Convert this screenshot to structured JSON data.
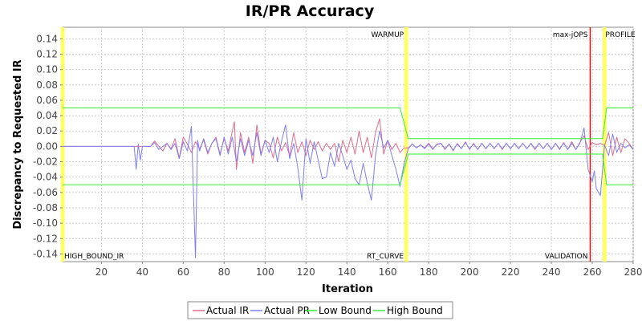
{
  "chart_data": {
    "type": "line",
    "title": "IR/PR Accuracy",
    "xlabel": "Iteration",
    "ylabel": "Discrepancy to Requested IR",
    "xlim": [
      1,
      280
    ],
    "ylim": [
      -0.15,
      0.155
    ],
    "x_ticks": [
      20,
      40,
      60,
      80,
      100,
      120,
      140,
      160,
      180,
      200,
      220,
      240,
      260,
      280
    ],
    "y_ticks": [
      -0.14,
      -0.12,
      -0.1,
      -0.08,
      -0.06,
      -0.04,
      -0.02,
      0.0,
      0.02,
      0.04,
      0.06,
      0.08,
      0.1,
      0.12,
      0.14
    ],
    "y_tick_labels": [
      "-0.14",
      "-0.12",
      "-0.10",
      "-0.08",
      "-0.06",
      "-0.04",
      "-0.02",
      "0.00",
      "0.02",
      "0.04",
      "0.06",
      "0.08",
      "0.10",
      "0.12",
      "0.14"
    ],
    "grid": true,
    "legend_position": "bottom",
    "series": [
      {
        "name": "Actual IR",
        "color": "#e06c8c",
        "points": [
          [
            1,
            0
          ],
          [
            36,
            0
          ],
          [
            38,
            0
          ],
          [
            40,
            0
          ],
          [
            42,
            0
          ],
          [
            44,
            0
          ],
          [
            46,
            0.007
          ],
          [
            48,
            0
          ],
          [
            50,
            -0.006
          ],
          [
            52,
            0.004
          ],
          [
            54,
            -0.003
          ],
          [
            56,
            0.01
          ],
          [
            58,
            -0.015
          ],
          [
            60,
            0.012
          ],
          [
            62,
            0.003
          ],
          [
            64,
            -0.008
          ],
          [
            66,
            0.006
          ],
          [
            68,
            -0.003
          ],
          [
            70,
            0.008
          ],
          [
            72,
            -0.01
          ],
          [
            74,
            0.004
          ],
          [
            76,
            0.012
          ],
          [
            78,
            -0.01
          ],
          [
            80,
            0.01
          ],
          [
            82,
            -0.006
          ],
          [
            84,
            0.02
          ],
          [
            85,
            0.032
          ],
          [
            86,
            -0.03
          ],
          [
            88,
            0.018
          ],
          [
            90,
            -0.008
          ],
          [
            92,
            0.012
          ],
          [
            94,
            -0.022
          ],
          [
            96,
            0.028
          ],
          [
            98,
            -0.01
          ],
          [
            100,
            0.008
          ],
          [
            102,
            0.004
          ],
          [
            104,
            -0.015
          ],
          [
            106,
            0.012
          ],
          [
            108,
            -0.006
          ],
          [
            110,
            0.005
          ],
          [
            112,
            -0.012
          ],
          [
            114,
            0.018
          ],
          [
            116,
            -0.008
          ],
          [
            118,
            0.006
          ],
          [
            120,
            -0.012
          ],
          [
            122,
            0.008
          ],
          [
            124,
            -0.004
          ],
          [
            126,
            0.006
          ],
          [
            128,
            -0.006
          ],
          [
            130,
            0.004
          ],
          [
            132,
            -0.004
          ],
          [
            134,
            0.004
          ],
          [
            136,
            -0.02
          ],
          [
            138,
            0.008
          ],
          [
            140,
            -0.008
          ],
          [
            142,
            0.012
          ],
          [
            144,
            -0.01
          ],
          [
            146,
            0.02
          ],
          [
            148,
            -0.008
          ],
          [
            150,
            0.012
          ],
          [
            152,
            -0.015
          ],
          [
            154,
            0.018
          ],
          [
            156,
            0.036
          ],
          [
            158,
            -0.01
          ],
          [
            160,
            0.008
          ],
          [
            162,
            -0.004
          ],
          [
            164,
            0.004
          ],
          [
            166,
            -0.008
          ],
          [
            168,
            -0.002
          ],
          [
            170,
            -0.002
          ],
          [
            172,
            0.003
          ],
          [
            174,
            -0.002
          ],
          [
            176,
            0.002
          ],
          [
            178,
            -0.002
          ],
          [
            180,
            0.004
          ],
          [
            182,
            -0.003
          ],
          [
            184,
            0.002
          ],
          [
            186,
            0.004
          ],
          [
            188,
            -0.004
          ],
          [
            190,
            0.003
          ],
          [
            192,
            -0.006
          ],
          [
            194,
            0.004
          ],
          [
            196,
            -0.003
          ],
          [
            198,
            0.006
          ],
          [
            200,
            -0.004
          ],
          [
            202,
            0.004
          ],
          [
            204,
            -0.004
          ],
          [
            206,
            0.004
          ],
          [
            208,
            -0.003
          ],
          [
            210,
            0.004
          ],
          [
            212,
            -0.003
          ],
          [
            214,
            0.004
          ],
          [
            216,
            -0.004
          ],
          [
            218,
            0.004
          ],
          [
            220,
            -0.003
          ],
          [
            222,
            0.004
          ],
          [
            224,
            -0.003
          ],
          [
            226,
            0.004
          ],
          [
            228,
            -0.003
          ],
          [
            230,
            0.004
          ],
          [
            232,
            -0.004
          ],
          [
            234,
            0.004
          ],
          [
            236,
            -0.003
          ],
          [
            238,
            0.004
          ],
          [
            240,
            -0.004
          ],
          [
            242,
            0.004
          ],
          [
            244,
            -0.004
          ],
          [
            246,
            0.005
          ],
          [
            248,
            -0.004
          ],
          [
            250,
            0.006
          ],
          [
            252,
            -0.004
          ],
          [
            254,
            0.005
          ],
          [
            256,
            0.014
          ],
          [
            258,
            -0.004
          ],
          [
            260,
            0.005
          ],
          [
            262,
            0.002
          ],
          [
            264,
            0.004
          ],
          [
            266,
            0.001
          ],
          [
            268,
            0.018
          ],
          [
            270,
            -0.012
          ],
          [
            272,
            0.012
          ],
          [
            274,
            -0.008
          ],
          [
            276,
            0.01
          ],
          [
            278,
            0.004
          ],
          [
            280,
            -0.004
          ]
        ]
      },
      {
        "name": "Actual PR",
        "color": "#7f7fef",
        "points": [
          [
            1,
            0
          ],
          [
            36,
            0
          ],
          [
            37,
            -0.03
          ],
          [
            38,
            0.003
          ],
          [
            39,
            -0.018
          ],
          [
            40,
            0
          ],
          [
            44,
            0
          ],
          [
            46,
            0.005
          ],
          [
            48,
            -0.004
          ],
          [
            50,
            0
          ],
          [
            52,
            0.004
          ],
          [
            54,
            -0.004
          ],
          [
            56,
            0.004
          ],
          [
            58,
            -0.016
          ],
          [
            60,
            0.006
          ],
          [
            62,
            -0.006
          ],
          [
            64,
            0.026
          ],
          [
            66,
            -0.145
          ],
          [
            67,
            0.008
          ],
          [
            68,
            -0.006
          ],
          [
            70,
            0.01
          ],
          [
            72,
            -0.008
          ],
          [
            74,
            0.004
          ],
          [
            76,
            0.01
          ],
          [
            78,
            -0.012
          ],
          [
            80,
            0.012
          ],
          [
            82,
            -0.01
          ],
          [
            84,
            0.012
          ],
          [
            86,
            -0.02
          ],
          [
            88,
            0.01
          ],
          [
            90,
            -0.012
          ],
          [
            92,
            0.008
          ],
          [
            94,
            -0.012
          ],
          [
            96,
            0.018
          ],
          [
            98,
            -0.012
          ],
          [
            100,
            0.008
          ],
          [
            102,
            -0.008
          ],
          [
            104,
            0.012
          ],
          [
            106,
            -0.02
          ],
          [
            108,
            0.006
          ],
          [
            110,
            0.028
          ],
          [
            112,
            -0.016
          ],
          [
            114,
            0.004
          ],
          [
            116,
            -0.028
          ],
          [
            118,
            -0.07
          ],
          [
            120,
            0.01
          ],
          [
            122,
            -0.022
          ],
          [
            124,
            0.006
          ],
          [
            126,
            -0.018
          ],
          [
            128,
            -0.042
          ],
          [
            130,
            -0.04
          ],
          [
            132,
            -0.008
          ],
          [
            134,
            -0.026
          ],
          [
            136,
            0.004
          ],
          [
            138,
            -0.012
          ],
          [
            140,
            -0.03
          ],
          [
            142,
            -0.018
          ],
          [
            144,
            -0.042
          ],
          [
            146,
            -0.05
          ],
          [
            148,
            -0.022
          ],
          [
            150,
            -0.048
          ],
          [
            152,
            -0.07
          ],
          [
            154,
            -0.012
          ],
          [
            156,
            0.02
          ],
          [
            158,
            -0.002
          ],
          [
            160,
            0.008
          ],
          [
            162,
            -0.012
          ],
          [
            164,
            -0.03
          ],
          [
            166,
            -0.052
          ],
          [
            168,
            -0.022
          ],
          [
            170,
            -0.003
          ],
          [
            172,
            0.003
          ],
          [
            174,
            -0.002
          ],
          [
            176,
            0.002
          ],
          [
            178,
            -0.003
          ],
          [
            180,
            0.003
          ],
          [
            182,
            -0.004
          ],
          [
            184,
            0.003
          ],
          [
            186,
            0.004
          ],
          [
            188,
            -0.003
          ],
          [
            190,
            0.003
          ],
          [
            192,
            -0.005
          ],
          [
            194,
            0.003
          ],
          [
            196,
            -0.003
          ],
          [
            198,
            0.005
          ],
          [
            200,
            -0.003
          ],
          [
            202,
            0.003
          ],
          [
            204,
            -0.004
          ],
          [
            206,
            0.004
          ],
          [
            208,
            -0.003
          ],
          [
            210,
            0.004
          ],
          [
            212,
            -0.003
          ],
          [
            214,
            0.004
          ],
          [
            216,
            -0.003
          ],
          [
            218,
            0.004
          ],
          [
            220,
            -0.003
          ],
          [
            222,
            0.004
          ],
          [
            224,
            -0.003
          ],
          [
            226,
            0.004
          ],
          [
            228,
            -0.003
          ],
          [
            230,
            0.004
          ],
          [
            232,
            -0.003
          ],
          [
            234,
            0.004
          ],
          [
            236,
            -0.003
          ],
          [
            238,
            0.004
          ],
          [
            240,
            -0.004
          ],
          [
            242,
            0.004
          ],
          [
            244,
            -0.003
          ],
          [
            246,
            0.004
          ],
          [
            248,
            -0.004
          ],
          [
            250,
            0.004
          ],
          [
            252,
            -0.004
          ],
          [
            254,
            0.004
          ],
          [
            256,
            0.024
          ],
          [
            258,
            -0.03
          ],
          [
            260,
            -0.046
          ],
          [
            261,
            -0.032
          ],
          [
            262,
            -0.055
          ],
          [
            264,
            -0.064
          ],
          [
            266,
            0.002
          ],
          [
            268,
            -0.012
          ],
          [
            270,
            0.016
          ],
          [
            272,
            -0.008
          ],
          [
            274,
            0.004
          ],
          [
            276,
            -0.002
          ],
          [
            278,
            0.002
          ],
          [
            280,
            -0.004
          ]
        ]
      },
      {
        "name": "Low Bound",
        "color": "#33ee33",
        "points": [
          [
            1,
            -0.05
          ],
          [
            166,
            -0.05
          ],
          [
            170,
            -0.01
          ],
          [
            265,
            -0.01
          ],
          [
            267,
            -0.05
          ],
          [
            280,
            -0.05
          ]
        ]
      },
      {
        "name": "High Bound",
        "color": "#33ee33",
        "points": [
          [
            1,
            0.05
          ],
          [
            166,
            0.05
          ],
          [
            170,
            0.01
          ],
          [
            265,
            0.01
          ],
          [
            267,
            0.05
          ],
          [
            280,
            0.05
          ]
        ]
      }
    ],
    "markers": [
      {
        "label": "WARMUP",
        "x": 169,
        "color": "#ffff66",
        "label_position": "top"
      },
      {
        "label": "RT_CURVE",
        "x": 169,
        "color": "#ffff66",
        "label_position": "bottom"
      },
      {
        "label": "max-jOPS",
        "x": 259,
        "color": "#dd1111",
        "label_position": "top"
      },
      {
        "label": "VALIDATION",
        "x": 259,
        "color": "#dd1111",
        "label_position": "bottom"
      },
      {
        "label": "PROFILE",
        "x": 266,
        "color": "#ffff66",
        "label_position": "top"
      },
      {
        "label": "HIGH_BOUND_IR",
        "x": 1,
        "color": "#ffff66",
        "label_position": "bottom"
      }
    ]
  }
}
